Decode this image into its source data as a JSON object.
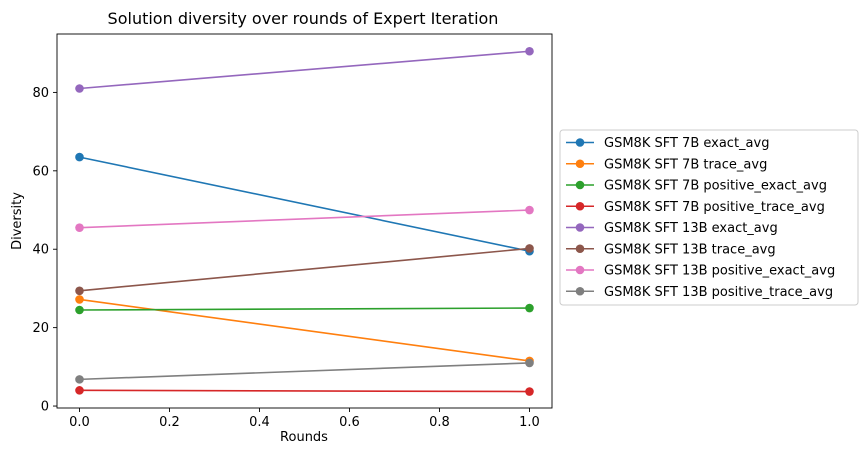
{
  "chart_data": {
    "type": "line",
    "title": "Solution diversity over rounds of Expert Iteration",
    "xlabel": "Rounds",
    "ylabel": "Diversity",
    "x": [
      0.0,
      1.0
    ],
    "xlim": [
      -0.05,
      1.05
    ],
    "ylim": [
      -0.5,
      94.9
    ],
    "xticks": [
      0.0,
      0.2,
      0.4,
      0.6,
      0.8,
      1.0
    ],
    "xtick_labels": [
      "0.0",
      "0.2",
      "0.4",
      "0.6",
      "0.8",
      "1.0"
    ],
    "yticks": [
      0,
      20,
      40,
      60,
      80
    ],
    "ytick_labels": [
      "0",
      "20",
      "40",
      "60",
      "80"
    ],
    "grid": false,
    "legend_position": "right-outside",
    "series": [
      {
        "name": "GSM8K SFT 7B exact_avg",
        "color": "#1f77b4",
        "values": [
          63.5,
          39.5
        ]
      },
      {
        "name": "GSM8K SFT 7B trace_avg",
        "color": "#ff7f0e",
        "values": [
          27.2,
          11.5
        ]
      },
      {
        "name": "GSM8K SFT 7B positive_exact_avg",
        "color": "#2ca02c",
        "values": [
          24.5,
          25.0
        ]
      },
      {
        "name": "GSM8K SFT 7B positive_trace_avg",
        "color": "#d62728",
        "values": [
          4.0,
          3.7
        ]
      },
      {
        "name": "GSM8K SFT 13B exact_avg",
        "color": "#9467bd",
        "values": [
          81.0,
          90.5
        ]
      },
      {
        "name": "GSM8K SFT 13B trace_avg",
        "color": "#8c564b",
        "values": [
          29.4,
          40.2
        ]
      },
      {
        "name": "GSM8K SFT 13B positive_exact_avg",
        "color": "#e377c2",
        "values": [
          45.5,
          50.0
        ]
      },
      {
        "name": "GSM8K SFT 13B positive_trace_avg",
        "color": "#7f7f7f",
        "values": [
          6.8,
          11.0
        ]
      }
    ]
  }
}
